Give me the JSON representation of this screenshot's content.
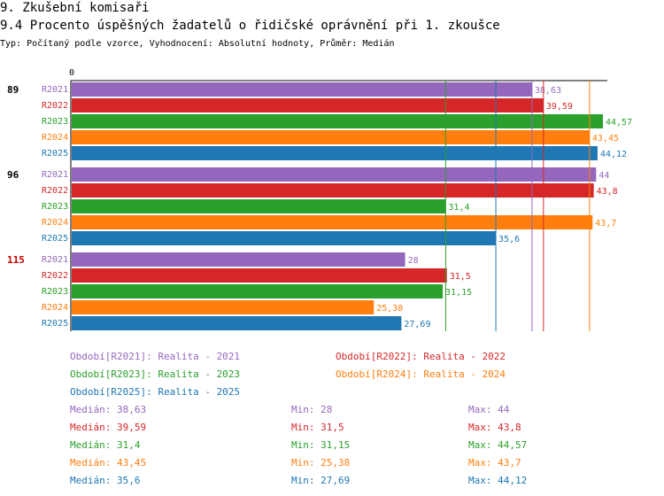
{
  "header": {
    "title": "9. Zkušební komisaři",
    "subtitle": "9.4 Procento úspěšných žadatelů o řidičské oprávnění při 1. zkoušce",
    "meta": "Typ: Počítaný podle vzorce, Vyhodnocení: Absolutní hodnoty, Průměr: Medián"
  },
  "colors": {
    "R2021": "#9467bd",
    "R2022": "#d62728",
    "R2023": "#2ca02c",
    "R2024": "#ff7f0e",
    "R2025": "#1f77b4"
  },
  "chart_data": {
    "type": "bar",
    "orientation": "horizontal",
    "x_tick_labels": [
      "0"
    ],
    "xlim": [
      0,
      44.57
    ],
    "groups": [
      {
        "label": "89",
        "highlight": false,
        "bars": [
          {
            "series": "R2021",
            "value": 38.63,
            "label": "38,63"
          },
          {
            "series": "R2022",
            "value": 39.59,
            "label": "39,59"
          },
          {
            "series": "R2023",
            "value": 44.57,
            "label": "44,57"
          },
          {
            "series": "R2024",
            "value": 43.45,
            "label": "43,45"
          },
          {
            "series": "R2025",
            "value": 44.12,
            "label": "44,12"
          }
        ]
      },
      {
        "label": "96",
        "highlight": false,
        "bars": [
          {
            "series": "R2021",
            "value": 44,
            "label": "44"
          },
          {
            "series": "R2022",
            "value": 43.8,
            "label": "43,8"
          },
          {
            "series": "R2023",
            "value": 31.4,
            "label": "31,4"
          },
          {
            "series": "R2024",
            "value": 43.7,
            "label": "43,7"
          },
          {
            "series": "R2025",
            "value": 35.6,
            "label": "35,6"
          }
        ]
      },
      {
        "label": "115",
        "highlight": true,
        "bars": [
          {
            "series": "R2021",
            "value": 28,
            "label": "28"
          },
          {
            "series": "R2022",
            "value": 31.5,
            "label": "31,5"
          },
          {
            "series": "R2023",
            "value": 31.15,
            "label": "31,15"
          },
          {
            "series": "R2024",
            "value": 25.38,
            "label": "25,38"
          },
          {
            "series": "R2025",
            "value": 27.69,
            "label": "27,69"
          }
        ]
      }
    ],
    "median_lines": [
      {
        "series": "R2021",
        "value": 38.63
      },
      {
        "series": "R2022",
        "value": 39.59
      },
      {
        "series": "R2023",
        "value": 31.4
      },
      {
        "series": "R2024",
        "value": 43.45
      },
      {
        "series": "R2025",
        "value": 35.6
      }
    ]
  },
  "legend": [
    {
      "series": "R2021",
      "text": "Období[R2021]: Realita - 2021"
    },
    {
      "series": "R2022",
      "text": "Období[R2022]: Realita - 2022"
    },
    {
      "series": "R2023",
      "text": "Období[R2023]: Realita - 2023"
    },
    {
      "series": "R2024",
      "text": "Období[R2024]: Realita - 2024"
    },
    {
      "series": "R2025",
      "text": "Období[R2025]: Realita - 2025"
    }
  ],
  "stats": [
    {
      "series": "R2021",
      "median": "Medián: 38,63",
      "min": "Min: 28",
      "max": "Max: 44"
    },
    {
      "series": "R2022",
      "median": "Medián: 39,59",
      "min": "Min: 31,5",
      "max": "Max: 43,8"
    },
    {
      "series": "R2023",
      "median": "Medián: 31,4",
      "min": "Min: 31,15",
      "max": "Max: 44,57"
    },
    {
      "series": "R2024",
      "median": "Medián: 43,45",
      "min": "Min: 25,38",
      "max": "Max: 43,7"
    },
    {
      "series": "R2025",
      "median": "Medián: 35,6",
      "min": "Min: 27,69",
      "max": "Max: 44,12"
    }
  ]
}
